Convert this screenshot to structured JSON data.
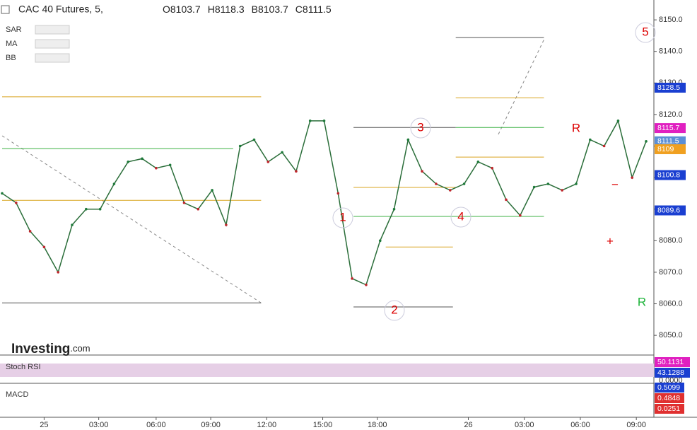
{
  "chart_data": {
    "type": "line",
    "title": "CAC 40 Futures, 5,",
    "ohlc": [
      {
        "label": "O",
        "value": 8103.7
      },
      {
        "label": "H",
        "value": 8118.3
      },
      {
        "label": "B",
        "value": 8103.7
      },
      {
        "label": "C",
        "value": 8111.5
      }
    ],
    "indicators": [
      "SAR",
      "MA",
      "BB"
    ],
    "logo": {
      "main": "Investing",
      "suffix": ".com"
    },
    "xlim": [
      0,
      46.2
    ],
    "xticks": [
      {
        "value": 3,
        "label": "25"
      },
      {
        "value": 6.9,
        "label": "03:00"
      },
      {
        "value": 11,
        "label": "06:00"
      },
      {
        "value": 14.9,
        "label": "09:00"
      },
      {
        "value": 18.9,
        "label": "12:00"
      },
      {
        "value": 22.9,
        "label": "15:00"
      },
      {
        "value": 26.8,
        "label": "18:00"
      },
      {
        "value": 33.3,
        "label": "26"
      },
      {
        "value": 37.3,
        "label": "03:00"
      },
      {
        "value": 41.3,
        "label": "06:00"
      },
      {
        "value": 45.3,
        "label": "09:00"
      }
    ],
    "ylim": [
      8044.2,
      8156.3
    ],
    "yticks": [
      {
        "value": 8050,
        "label": "8050.0"
      },
      {
        "value": 8060,
        "label": "8060.0"
      },
      {
        "value": 8070,
        "label": "8070.0"
      },
      {
        "value": 8080,
        "label": "8080.0"
      },
      {
        "value": 8090,
        "label": "8090.0"
      },
      {
        "value": 8100,
        "label": "8100.0"
      },
      {
        "value": 8110,
        "label": "8110.0"
      },
      {
        "value": 8120,
        "label": "8120.0"
      },
      {
        "value": 8130,
        "label": "8130.0"
      },
      {
        "value": 8140,
        "label": "8140.0"
      },
      {
        "value": 8150,
        "label": "8150.0"
      }
    ],
    "series": [
      {
        "name": "CAC 40 Futures",
        "color": "#2b6e3a",
        "values": [
          8095,
          8092,
          8083,
          8078,
          8070,
          8085,
          8090,
          8090,
          8098,
          8105,
          8106,
          8103,
          8104,
          8092,
          8090,
          8096,
          8085,
          8110,
          8112,
          8105,
          8108,
          8102,
          8118,
          8118,
          8095,
          8068,
          8066,
          8080,
          8090,
          8112,
          8102,
          8098,
          8096,
          8098,
          8105,
          8103,
          8093,
          8088,
          8097,
          8098,
          8096,
          8098,
          8112,
          8110,
          8118,
          8100,
          8111.5
        ]
      }
    ],
    "levels": [
      {
        "value": 8125.6,
        "x": [
          0,
          18.5
        ],
        "color": "#d9a520"
      },
      {
        "value": 8109.2,
        "x": [
          0,
          16.5
        ],
        "color": "#3cb043"
      },
      {
        "value": 8092.8,
        "x": [
          0,
          18.5
        ],
        "color": "#d9a520"
      },
      {
        "value": 8060.3,
        "x": [
          0,
          18.5
        ],
        "color": "#555"
      },
      {
        "value": 8144.4,
        "x": [
          32.4,
          38.7
        ],
        "color": "#555"
      },
      {
        "value": 8125.3,
        "x": [
          32.4,
          38.7
        ],
        "color": "#d9a520"
      },
      {
        "value": 8115.9,
        "x": [
          25.1,
          32.4
        ],
        "color": "#555"
      },
      {
        "value": 8115.9,
        "x": [
          32.4,
          38.7
        ],
        "color": "#3cb043"
      },
      {
        "value": 8106.5,
        "x": [
          32.4,
          38.7
        ],
        "color": "#d9a520"
      },
      {
        "value": 8096.9,
        "x": [
          25.1,
          32.4
        ],
        "color": "#d9a520"
      },
      {
        "value": 8087.7,
        "x": [
          25.1,
          38.7
        ],
        "color": "#3cb043"
      },
      {
        "value": 8078,
        "x": [
          27.4,
          32.2
        ],
        "color": "#d9a520"
      },
      {
        "value": 8059,
        "x": [
          25.1,
          32.2
        ],
        "color": "#555"
      }
    ],
    "price_tags": [
      {
        "value": 8128.5,
        "color": "#1a3fd1"
      },
      {
        "value": 8115.7,
        "color": "#e020c0"
      },
      {
        "value": 8111.5,
        "color": "#5b8fd6"
      },
      {
        "value": 8109,
        "color": "#f0a020"
      },
      {
        "value": 8100.8,
        "color": "#1a3fd1"
      },
      {
        "value": 8089.6,
        "color": "#1a3fd1"
      }
    ],
    "annotations": [
      "1",
      "2",
      "3",
      "4",
      "5",
      "R",
      "R",
      "+",
      "−"
    ],
    "stoch_rsi": {
      "label": "Stoch RSI",
      "values": [
        50.1131,
        43.1288
      ],
      "scale": {
        "value": 0,
        "label": "0.0000"
      }
    },
    "macd": {
      "label": "MACD",
      "values": [
        0.5099,
        0.4848,
        0.0251
      ]
    }
  }
}
